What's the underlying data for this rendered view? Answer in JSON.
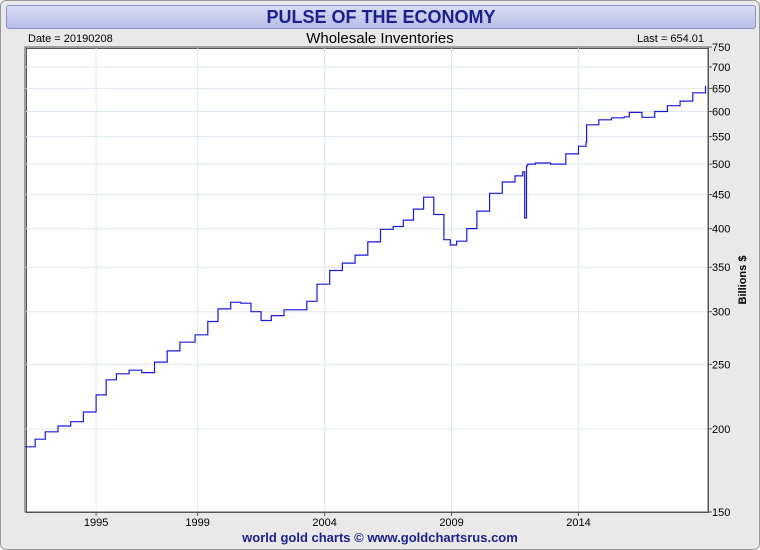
{
  "header": {
    "title": "PULSE OF THE ECONOMY",
    "subtitle": "Wholesale Inventories",
    "date_label": "Date = 20190208",
    "last_label": "Last = 654.01",
    "footer": "world gold charts © www.goldchartsrus.com"
  },
  "colors": {
    "line": "#1a1ad8",
    "grid": "#dde7f0",
    "title": "#1a1f8c"
  },
  "chart_data": {
    "type": "line",
    "title": "Wholesale Inventories",
    "xlabel": "",
    "ylabel": "Billions $",
    "y_scale": "log",
    "ylim": [
      150,
      750
    ],
    "xlim": [
      1992.2,
      2019.1
    ],
    "x_ticks": [
      1995,
      1999,
      2004,
      2009,
      2014
    ],
    "x_tick_labels": [
      "1995",
      "1999",
      "2004",
      "2009",
      "2014"
    ],
    "y_ticks": [
      150,
      200,
      250,
      300,
      350,
      400,
      450,
      500,
      550,
      600,
      650,
      700,
      750
    ],
    "y_tick_labels": [
      "150",
      "200",
      "250",
      "300",
      "350",
      "400",
      "450",
      "500",
      "550",
      "600",
      "650",
      "700",
      "750"
    ],
    "series": [
      {
        "name": "Wholesale Inventories",
        "x": [
          1992.2,
          1992.6,
          1993.0,
          1993.5,
          1994.0,
          1994.5,
          1995.0,
          1995.4,
          1995.8,
          1996.3,
          1996.8,
          1997.3,
          1997.8,
          1998.3,
          1998.9,
          1999.4,
          1999.8,
          2000.3,
          2000.7,
          2001.1,
          2001.5,
          2001.9,
          2002.4,
          2002.9,
          2003.3,
          2003.7,
          2004.2,
          2004.7,
          2005.2,
          2005.7,
          2006.2,
          2006.7,
          2007.1,
          2007.5,
          2007.9,
          2008.3,
          2008.7,
          2008.95,
          2009.2,
          2009.6,
          2010.0,
          2010.5,
          2011.0,
          2011.5,
          2011.8,
          2011.88,
          2011.9,
          2011.95,
          2012.0,
          2012.3,
          2012.9,
          2013.5,
          2014.0,
          2014.3,
          2014.32,
          2014.8,
          2015.3,
          2015.8,
          2016.0,
          2016.5,
          2017.0,
          2017.5,
          2018.0,
          2018.5,
          2019.0
        ],
        "values": [
          188,
          193,
          198,
          202,
          205,
          212,
          225,
          237,
          242,
          245,
          243,
          252,
          262,
          270,
          277,
          290,
          303,
          310,
          309,
          300,
          291,
          296,
          302,
          302,
          311,
          330,
          346,
          355,
          365,
          382,
          399,
          403,
          412,
          428,
          446,
          420,
          385,
          378,
          383,
          400,
          425,
          452,
          470,
          480,
          487,
          415,
          415,
          497,
          500,
          502,
          500,
          518,
          532,
          540,
          573,
          583,
          587,
          589,
          598,
          588,
          600,
          612,
          622,
          640,
          656
        ]
      }
    ]
  }
}
